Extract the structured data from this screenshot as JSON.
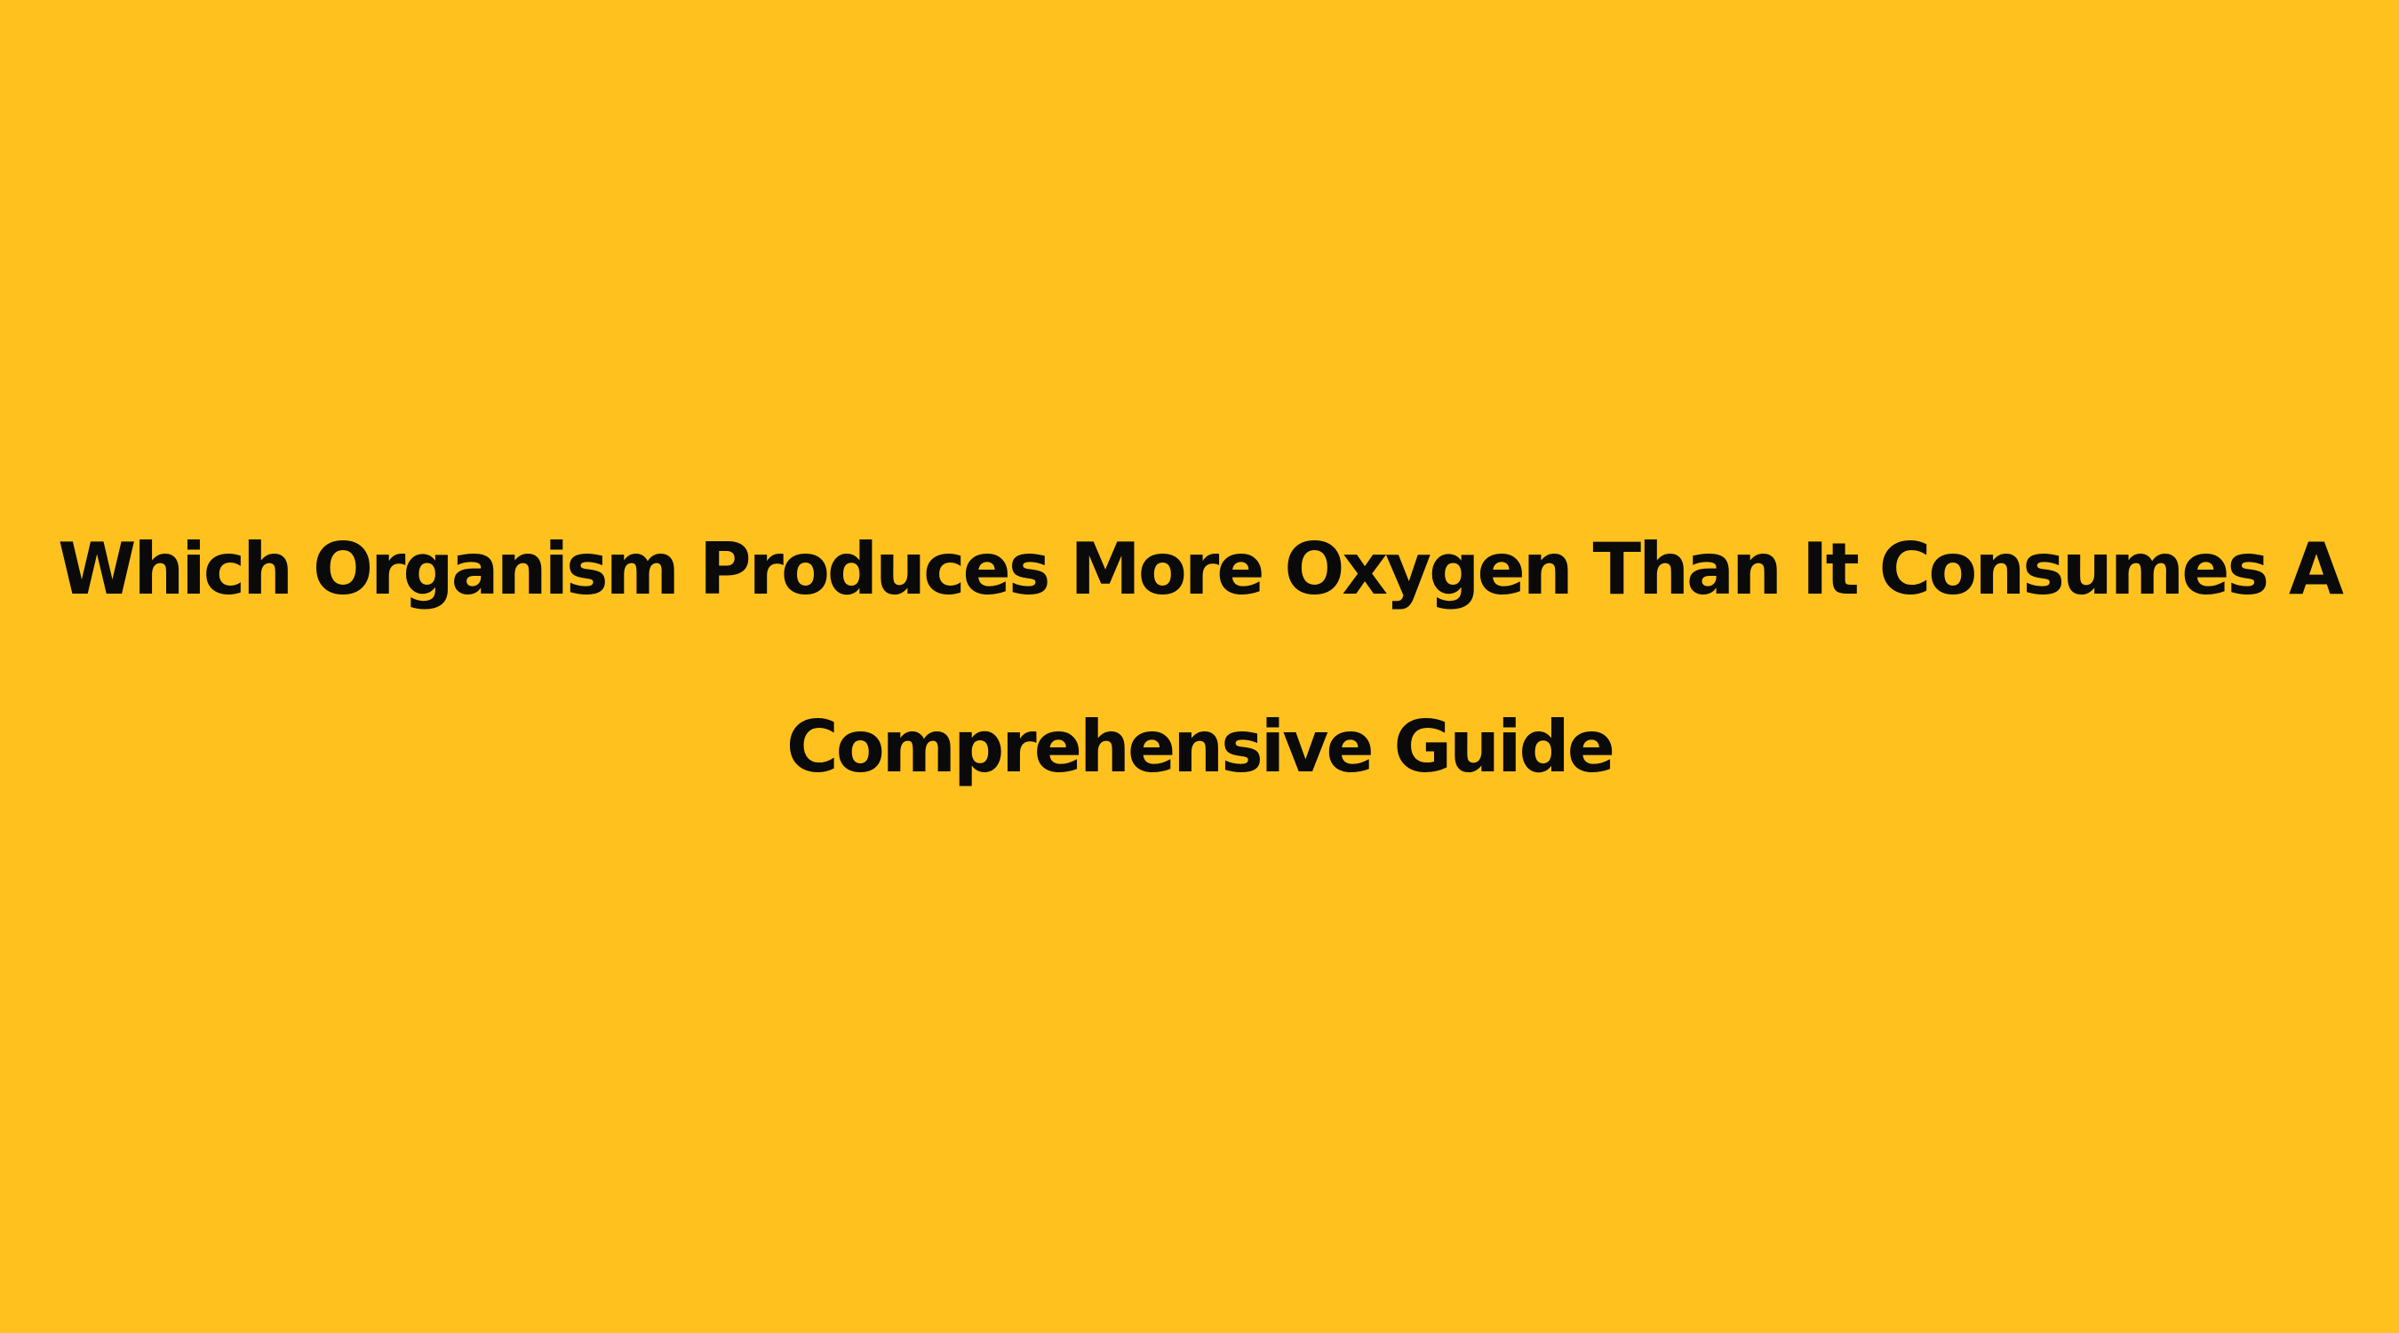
{
  "background_color": "#FFC11E",
  "text_color": "#0a0a0a",
  "title": {
    "lines": [
      "Which Organism Produces More Oxygen Than It Consumes A",
      "Comprehensive Guide"
    ]
  }
}
